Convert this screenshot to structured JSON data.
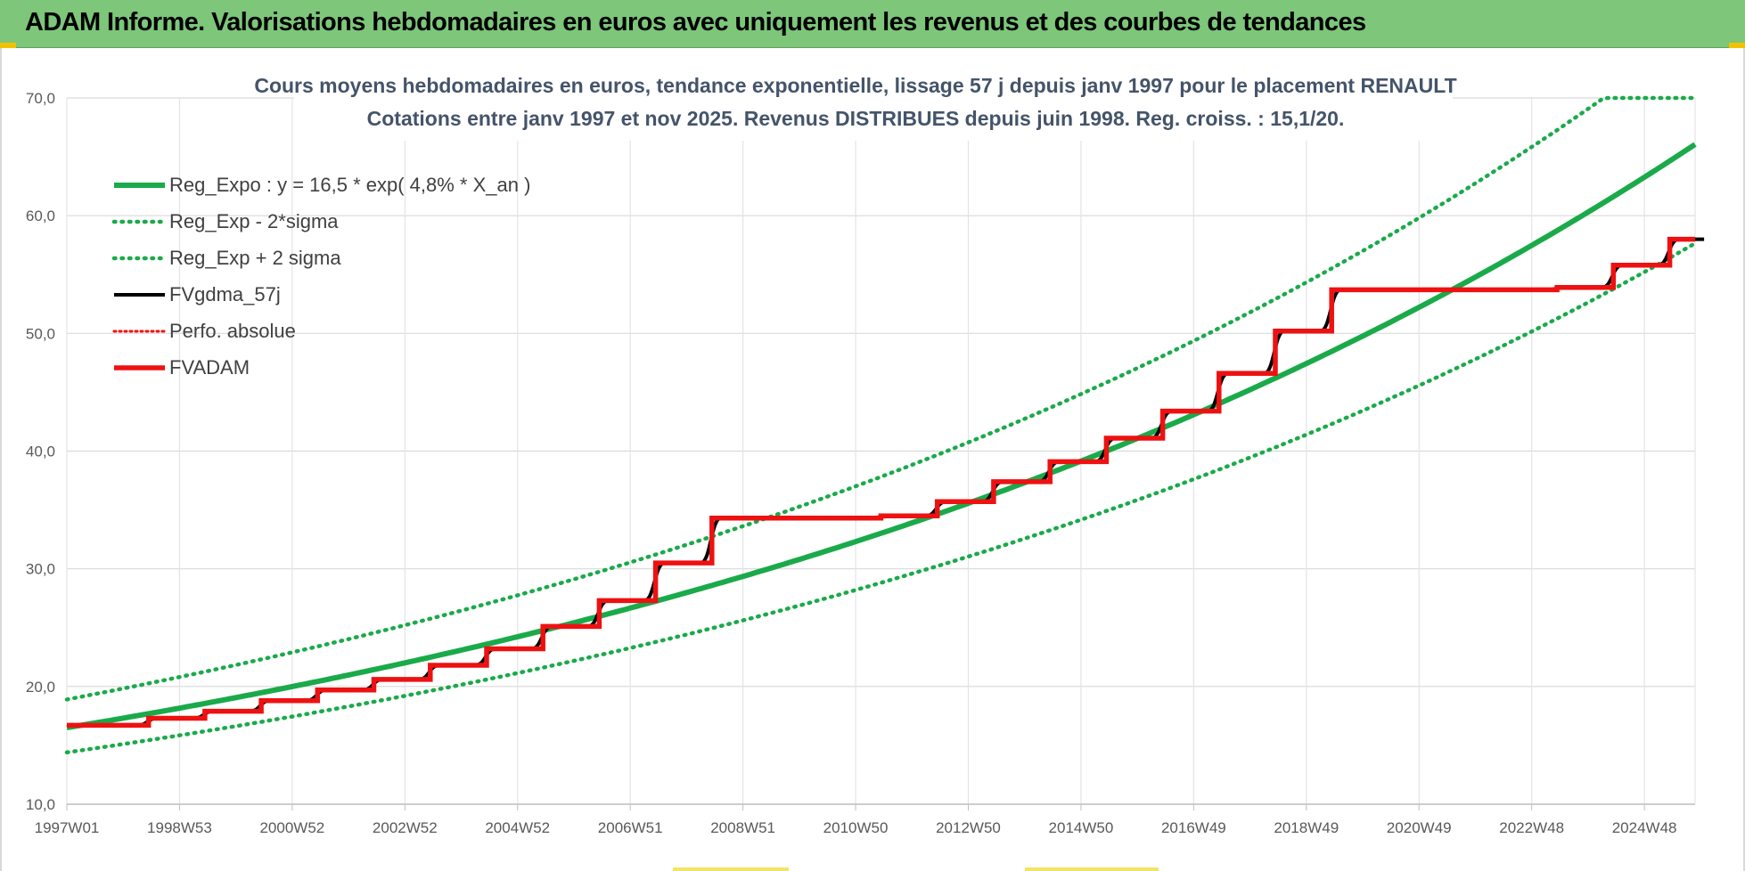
{
  "header": {
    "title": "ADAM Informe. Valorisations hebdomadaires en euros avec uniquement les revenus et des courbes de tendances"
  },
  "colors": {
    "banner": "#7dc67a",
    "trend": "#1aaa4a",
    "fvgdma": "#000000",
    "fvadam": "#ee1111",
    "perfo": "#ee1111"
  },
  "chart_data": {
    "type": "line",
    "title_lines": [
      "Cours moyens hebdomadaires en euros, tendance exponentielle, lissage 57 j depuis janv 1997 pour le placement RENAULT",
      "Cotations entre janv 1997 et nov 2025. Revenus DISTRIBUES depuis juin 1998. Reg. croiss. : 15,1/20."
    ],
    "ylim": [
      10,
      70
    ],
    "xlim": [
      1997.0,
      2025.9
    ],
    "y_ticks": [
      "10,0",
      "20,0",
      "30,0",
      "40,0",
      "50,0",
      "60,0",
      "70,0"
    ],
    "x_tick_labels": [
      "1997W01",
      "1998W53",
      "2000W52",
      "2002W52",
      "2004W52",
      "2006W51",
      "2008W51",
      "2010W50",
      "2012W50",
      "2014W50",
      "2016W49",
      "2018W49",
      "2020W49",
      "2022W48",
      "2024W48"
    ],
    "grid": true,
    "legend_position": "top-left",
    "series": [
      {
        "name": "Reg_Expo : y = 16,5 * exp( 4,8% *  X_an )",
        "style": "solid-thick",
        "color": "#1aaa4a",
        "a": 16.5,
        "b": 0.048,
        "x0": 1997.0
      },
      {
        "name": "Reg_Exp - 2*sigma",
        "style": "dotted",
        "color": "#1aaa4a",
        "a": 14.4,
        "b": 0.048,
        "x0": 1997.0
      },
      {
        "name": "Reg_Exp + 2 sigma",
        "style": "dotted",
        "color": "#1aaa4a",
        "a": 18.9,
        "b": 0.048,
        "x0": 1997.0,
        "cap": 70
      },
      {
        "name": "FVgdma_57j",
        "style": "solid",
        "color": "#000000"
      },
      {
        "name": "Perfo. absolue",
        "style": "dotted",
        "color": "#ee1111"
      },
      {
        "name": "FVADAM",
        "style": "solid-thick",
        "color": "#ee1111",
        "steps": [
          {
            "x": 1997.0,
            "y": 16.7
          },
          {
            "x": 1998.45,
            "y": 17.3
          },
          {
            "x": 1999.45,
            "y": 17.9
          },
          {
            "x": 2000.45,
            "y": 18.8
          },
          {
            "x": 2001.45,
            "y": 19.7
          },
          {
            "x": 2002.45,
            "y": 20.6
          },
          {
            "x": 2003.45,
            "y": 21.8
          },
          {
            "x": 2004.45,
            "y": 23.2
          },
          {
            "x": 2005.45,
            "y": 25.1
          },
          {
            "x": 2006.45,
            "y": 27.3
          },
          {
            "x": 2007.45,
            "y": 30.5
          },
          {
            "x": 2008.45,
            "y": 34.3
          },
          {
            "x": 2011.45,
            "y": 34.5
          },
          {
            "x": 2012.45,
            "y": 35.7
          },
          {
            "x": 2013.45,
            "y": 37.4
          },
          {
            "x": 2014.45,
            "y": 39.1
          },
          {
            "x": 2015.45,
            "y": 41.1
          },
          {
            "x": 2016.45,
            "y": 43.4
          },
          {
            "x": 2017.45,
            "y": 46.6
          },
          {
            "x": 2018.45,
            "y": 50.2
          },
          {
            "x": 2019.45,
            "y": 53.7
          },
          {
            "x": 2023.45,
            "y": 53.9
          },
          {
            "x": 2024.45,
            "y": 55.8
          },
          {
            "x": 2025.45,
            "y": 58.0
          },
          {
            "x": 2025.9,
            "y": 58.0
          }
        ]
      }
    ]
  }
}
